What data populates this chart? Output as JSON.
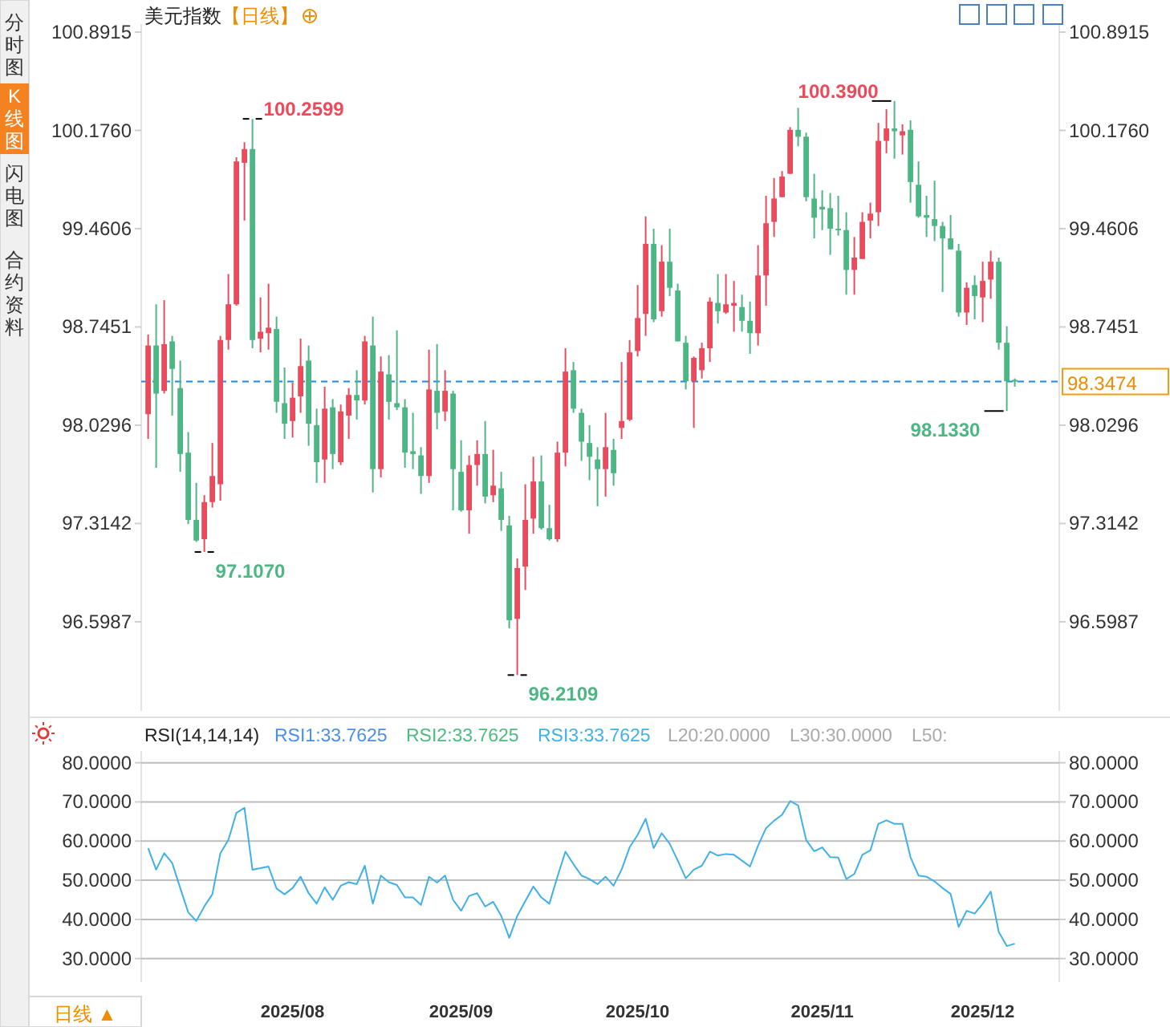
{
  "chart_data": [
    {
      "type": "candlestick",
      "title": "美元指数",
      "subtitle": "【日线】",
      "categories": [
        null,
        null,
        null,
        null,
        null,
        null,
        null,
        null,
        null,
        null,
        null,
        null,
        null,
        null,
        null,
        null,
        null,
        null,
        null,
        null,
        null,
        null,
        null,
        null,
        null,
        null,
        null,
        null,
        null,
        null,
        null,
        null,
        null,
        null,
        null,
        null,
        null,
        null,
        null,
        null,
        null,
        null,
        null,
        null,
        null,
        null,
        null,
        null,
        null,
        null,
        null,
        null,
        null,
        null,
        null,
        null,
        null,
        null,
        null,
        null,
        null,
        null,
        null,
        null,
        null,
        null,
        null,
        null,
        null,
        null,
        null,
        null,
        null,
        null,
        null,
        null,
        null,
        null,
        null,
        null,
        null,
        null,
        null,
        null,
        null,
        null,
        null,
        null,
        null,
        null,
        null,
        null,
        null,
        null,
        null,
        null,
        null,
        null,
        null,
        null,
        null,
        null,
        null,
        null,
        null,
        null,
        null,
        null,
        null
      ],
      "ohlc": [
        [
          98.11,
          98.69,
          97.93,
          98.61
        ],
        [
          98.61,
          98.91,
          97.72,
          98.26
        ],
        [
          98.28,
          98.94,
          98.26,
          98.62
        ],
        [
          98.64,
          98.68,
          98.1,
          98.44
        ],
        [
          98.3,
          98.5,
          97.69,
          97.82
        ],
        [
          97.83,
          97.98,
          97.31,
          97.34
        ],
        [
          97.34,
          97.61,
          97.18,
          97.19
        ],
        [
          97.2,
          97.52,
          97.107,
          97.47
        ],
        [
          97.47,
          97.9,
          97.43,
          97.66
        ],
        [
          97.6,
          98.68,
          97.48,
          98.65
        ],
        [
          98.65,
          99.13,
          98.58,
          98.91
        ],
        [
          98.91,
          99.98,
          98.9,
          99.95
        ],
        [
          99.94,
          100.09,
          99.52,
          100.04
        ],
        [
          100.04,
          100.2599,
          98.59,
          98.65
        ],
        [
          98.66,
          98.96,
          98.56,
          98.71
        ],
        [
          98.7,
          99.06,
          98.58,
          98.74
        ],
        [
          98.73,
          98.82,
          98.12,
          98.2
        ],
        [
          98.19,
          98.45,
          97.93,
          98.04
        ],
        [
          98.06,
          98.34,
          97.94,
          98.23
        ],
        [
          98.24,
          98.66,
          98.12,
          98.46
        ],
        [
          98.5,
          98.61,
          97.88,
          98.04
        ],
        [
          98.03,
          98.15,
          97.61,
          97.76
        ],
        [
          97.78,
          98.31,
          97.61,
          98.15
        ],
        [
          98.16,
          98.22,
          97.71,
          97.82
        ],
        [
          97.76,
          98.18,
          97.74,
          98.13
        ],
        [
          98.1,
          98.3,
          97.93,
          98.25
        ],
        [
          98.25,
          98.43,
          98.07,
          98.21
        ],
        [
          98.21,
          98.68,
          98.18,
          98.64
        ],
        [
          98.61,
          98.82,
          97.54,
          97.71
        ],
        [
          97.71,
          98.53,
          97.65,
          98.42
        ],
        [
          98.4,
          98.54,
          98.07,
          98.2
        ],
        [
          98.19,
          98.72,
          98.14,
          98.16
        ],
        [
          98.16,
          98.22,
          97.72,
          97.83
        ],
        [
          97.84,
          98.12,
          97.71,
          97.82
        ],
        [
          97.81,
          97.87,
          97.53,
          97.66
        ],
        [
          97.66,
          98.58,
          97.61,
          98.29
        ],
        [
          98.28,
          98.62,
          98.0,
          98.12
        ],
        [
          98.13,
          98.43,
          98.06,
          98.28
        ],
        [
          98.26,
          98.28,
          97.41,
          97.71
        ],
        [
          97.69,
          97.92,
          97.4,
          97.41
        ],
        [
          97.41,
          97.81,
          97.24,
          97.74
        ],
        [
          97.74,
          97.92,
          97.59,
          97.82
        ],
        [
          97.82,
          98.06,
          97.46,
          97.51
        ],
        [
          97.52,
          97.85,
          97.47,
          97.59
        ],
        [
          97.57,
          97.69,
          97.26,
          97.34
        ],
        [
          97.3,
          97.37,
          96.55,
          96.61
        ],
        [
          96.62,
          97.06,
          96.2109,
          96.99
        ],
        [
          97.0,
          97.6,
          96.83,
          97.34
        ],
        [
          97.35,
          97.8,
          97.24,
          97.62
        ],
        [
          97.62,
          97.81,
          97.27,
          97.28
        ],
        [
          97.28,
          97.45,
          97.19,
          97.2
        ],
        [
          97.2,
          97.91,
          97.18,
          97.83
        ],
        [
          97.83,
          98.59,
          97.73,
          98.42
        ],
        [
          98.43,
          98.49,
          98.12,
          98.15
        ],
        [
          98.12,
          98.15,
          97.77,
          97.91
        ],
        [
          97.9,
          98.03,
          97.63,
          97.8
        ],
        [
          97.78,
          97.87,
          97.44,
          97.71
        ],
        [
          97.71,
          98.12,
          97.51,
          97.87
        ],
        [
          97.85,
          97.93,
          97.59,
          97.68
        ],
        [
          98.01,
          98.49,
          97.93,
          98.06
        ],
        [
          98.07,
          98.65,
          98.06,
          98.56
        ],
        [
          98.57,
          99.05,
          98.53,
          98.81
        ],
        [
          98.84,
          99.55,
          98.68,
          99.35
        ],
        [
          99.35,
          99.46,
          98.78,
          98.8
        ],
        [
          98.86,
          99.34,
          98.82,
          99.22
        ],
        [
          99.22,
          99.46,
          98.97,
          99.03
        ],
        [
          99.01,
          99.06,
          98.64,
          98.64
        ],
        [
          98.63,
          98.68,
          98.29,
          98.35
        ],
        [
          98.35,
          98.53,
          98.01,
          98.52
        ],
        [
          98.43,
          98.63,
          98.37,
          98.59
        ],
        [
          98.59,
          98.96,
          98.49,
          98.93
        ],
        [
          98.92,
          99.13,
          98.77,
          98.86
        ],
        [
          98.85,
          99.13,
          98.84,
          98.91
        ],
        [
          98.9,
          99.08,
          98.71,
          98.92
        ],
        [
          98.89,
          98.98,
          98.71,
          98.79
        ],
        [
          98.79,
          98.93,
          98.55,
          98.7
        ],
        [
          98.7,
          99.34,
          98.61,
          99.12
        ],
        [
          99.12,
          99.7,
          98.9,
          99.5
        ],
        [
          99.51,
          99.83,
          99.4,
          99.68
        ],
        [
          99.69,
          99.88,
          99.69,
          99.84
        ],
        [
          99.86,
          100.2,
          99.86,
          100.18
        ],
        [
          100.18,
          100.34,
          100.06,
          100.13
        ],
        [
          100.13,
          100.16,
          99.66,
          99.69
        ],
        [
          99.68,
          99.86,
          99.39,
          99.54
        ],
        [
          99.62,
          99.74,
          99.45,
          99.6
        ],
        [
          99.61,
          99.72,
          99.27,
          99.46
        ],
        [
          99.46,
          99.7,
          99.41,
          99.45
        ],
        [
          99.45,
          99.58,
          98.98,
          99.16
        ],
        [
          99.16,
          99.4,
          98.98,
          99.25
        ],
        [
          99.24,
          99.58,
          99.24,
          99.51
        ],
        [
          99.52,
          99.65,
          99.39,
          99.57
        ],
        [
          99.58,
          100.23,
          99.48,
          100.1
        ],
        [
          100.1,
          100.33,
          100.01,
          100.19
        ],
        [
          100.19,
          100.39,
          99.97,
          100.17
        ],
        [
          100.14,
          100.22,
          100.0,
          100.17
        ],
        [
          100.18,
          100.25,
          99.65,
          99.8
        ],
        [
          99.78,
          99.95,
          99.54,
          99.55
        ],
        [
          99.56,
          99.7,
          99.4,
          99.54
        ],
        [
          99.53,
          99.81,
          99.37,
          99.48
        ],
        [
          99.48,
          99.51,
          99.0,
          99.39
        ],
        [
          99.39,
          99.56,
          99.31,
          99.31
        ],
        [
          99.3,
          99.35,
          98.82,
          98.85
        ],
        [
          98.85,
          99.07,
          98.76,
          99.03
        ],
        [
          99.05,
          99.12,
          98.8,
          98.97
        ],
        [
          98.96,
          99.22,
          98.78,
          99.08
        ],
        [
          99.09,
          99.3,
          98.95,
          99.22
        ],
        [
          99.22,
          99.25,
          98.58,
          98.63
        ],
        [
          98.63,
          98.75,
          98.133,
          98.35
        ],
        [
          98.36,
          98.37,
          98.31,
          98.3474
        ]
      ],
      "colors": [
        "#ec4a5b",
        "#4db784",
        "#ec4a5b",
        "#4db784",
        "#4db784",
        "#4db784",
        "#4db784",
        "#ec4a5b",
        "#ec4a5b",
        "#ec4a5b",
        "#ec4a5b",
        "#ec4a5b",
        "#ec4a5b",
        "#4db784",
        "#ec4a5b",
        "#ec4a5b",
        "#4db784",
        "#4db784",
        "#ec4a5b",
        "#ec4a5b",
        "#4db784",
        "#4db784",
        "#ec4a5b",
        "#4db784",
        "#ec4a5b",
        "#ec4a5b",
        "#4db784",
        "#ec4a5b",
        "#4db784",
        "#ec4a5b",
        "#4db784",
        "#4db784",
        "#4db784",
        "#4db784",
        "#4db784",
        "#ec4a5b",
        "#4db784",
        "#ec4a5b",
        "#4db784",
        "#4db784",
        "#ec4a5b",
        "#ec4a5b",
        "#4db784",
        "#ec4a5b",
        "#4db784",
        "#4db784",
        "#ec4a5b",
        "#ec4a5b",
        "#ec4a5b",
        "#4db784",
        "#4db784",
        "#ec4a5b",
        "#ec4a5b",
        "#4db784",
        "#4db784",
        "#4db784",
        "#4db784",
        "#ec4a5b",
        "#4db784",
        "#ec4a5b",
        "#ec4a5b",
        "#ec4a5b",
        "#ec4a5b",
        "#4db784",
        "#ec4a5b",
        "#4db784",
        "#4db784",
        "#4db784",
        "#ec4a5b",
        "#ec4a5b",
        "#ec4a5b",
        "#4db784",
        "#ec4a5b",
        "#ec4a5b",
        "#4db784",
        "#4db784",
        "#ec4a5b",
        "#ec4a5b",
        "#ec4a5b",
        "#ec4a5b",
        "#ec4a5b",
        "#4db784",
        "#4db784",
        "#4db784",
        "#4db784",
        "#4db784",
        "#4db784",
        "#4db784",
        "#ec4a5b",
        "#ec4a5b",
        "#ec4a5b",
        "#ec4a5b",
        "#ec4a5b",
        "#4db784",
        "#ec4a5b",
        "#4db784",
        "#4db784",
        "#4db784",
        "#4db784",
        "#4db784",
        "#4db784",
        "#4db784",
        "#ec4a5b",
        "#4db784",
        "#ec4a5b",
        "#ec4a5b",
        "#4db784",
        "#4db784",
        "#4db784"
      ],
      "ylim": [
        95.95,
        100.95
      ],
      "yticks": [
        {
          "value": 96.5987,
          "label": "96.5987"
        },
        {
          "value": 97.3142,
          "label": "97.3142"
        },
        {
          "value": 98.0296,
          "label": "98.0296"
        },
        {
          "value": 98.7451,
          "label": "98.7451"
        },
        {
          "value": 99.4606,
          "label": "99.4606"
        },
        {
          "value": 100.176,
          "label": "100.1760"
        },
        {
          "value": 100.8915,
          "label": "100.8915"
        }
      ],
      "y2lim": [
        95.95,
        100.95
      ],
      "y2ticks": [
        {
          "value": 96.5987,
          "label": "96.5987"
        },
        {
          "value": 97.3142,
          "label": "97.3142"
        },
        {
          "value": 98.0296,
          "label": "98.0296"
        },
        {
          "value": 98.7451,
          "label": "98.7451"
        },
        {
          "value": 99.4606,
          "label": "99.4606"
        },
        {
          "value": 100.176,
          "label": "100.1760"
        },
        {
          "value": 100.8915,
          "label": "100.8915"
        }
      ],
      "tick_labels": "y",
      "ref_lines": [
        {
          "axis": "y",
          "value": 98.3474,
          "label": "98.3474",
          "color": "#1e88e5",
          "line_style": "dashed"
        }
      ],
      "annotations": [
        "100.2599",
        "97.1070",
        "96.2109",
        "100.3900",
        "98.1330",
        "分时图",
        "K线图",
        "闪电图",
        "合约资料"
      ]
    },
    {
      "type": "line",
      "title": "RSI(14,14,14)",
      "categories": [
        null,
        null,
        null,
        null,
        null,
        null,
        null,
        null,
        null,
        null,
        null,
        null,
        null,
        null,
        null,
        null,
        null,
        null,
        "2025/08",
        null,
        null,
        null,
        null,
        null,
        null,
        null,
        null,
        null,
        null,
        null,
        null,
        null,
        null,
        null,
        null,
        null,
        null,
        null,
        null,
        "2025/09",
        null,
        null,
        null,
        null,
        null,
        null,
        null,
        null,
        null,
        null,
        null,
        null,
        null,
        null,
        null,
        null,
        null,
        null,
        null,
        null,
        null,
        "2025/10",
        null,
        null,
        null,
        null,
        null,
        null,
        null,
        null,
        null,
        null,
        null,
        null,
        null,
        null,
        null,
        null,
        null,
        null,
        null,
        null,
        null,
        null,
        "2025/11",
        null,
        null,
        null,
        null,
        null,
        null,
        null,
        null,
        null,
        null,
        null,
        null,
        null,
        null,
        null,
        null,
        null,
        null,
        null,
        "2025/12",
        null,
        null,
        null,
        null
      ],
      "series": [
        {
          "color": "#3fb0e8",
          "values": [
            58.2,
            52.7,
            56.9,
            54.4,
            48,
            41.8,
            39.6,
            43.3,
            46.4,
            56.9,
            60.3,
            67.2,
            68.5,
            52.7,
            53.1,
            53.5,
            47.9,
            46.4,
            48,
            50.9,
            46.7,
            44,
            48.2,
            45,
            48.6,
            49.5,
            49,
            53.7,
            44,
            51.2,
            49.5,
            48.8,
            45.6,
            45.6,
            43.7,
            50.9,
            49.4,
            51.2,
            45,
            42.2,
            46,
            46.7,
            43.3,
            44.5,
            40.9,
            35.3,
            40.9,
            44.7,
            48.4,
            45.6,
            44,
            50.9,
            57.3,
            54.1,
            51.2,
            50.3,
            49,
            50.9,
            48.6,
            52.7,
            58.4,
            61.6,
            65.7,
            58.2,
            62,
            59.3,
            55,
            50.5,
            52.7,
            53.7,
            57.3,
            56.3,
            56.7,
            56.5,
            55,
            53.5,
            58.8,
            63.3,
            65.2,
            66.7,
            70.2,
            69.1,
            60.3,
            57.4,
            58.4,
            55.9,
            55.8,
            50.3,
            51.6,
            56.5,
            57.6,
            64.4,
            65.3,
            64.4,
            64.4,
            55.9,
            51.2,
            50.9,
            49.7,
            48,
            46.5,
            38.1,
            42.2,
            41.5,
            44,
            47.1,
            36.8,
            33.2,
            33.8
          ]
        }
      ],
      "ylim": [
        24,
        83
      ],
      "yticks": [
        {
          "value": 30,
          "label": "30.0000"
        },
        {
          "value": 40,
          "label": "40.0000"
        },
        {
          "value": 50,
          "label": "50.0000"
        },
        {
          "value": 60,
          "label": "60.0000"
        },
        {
          "value": 70,
          "label": "70.0000"
        },
        {
          "value": 80,
          "label": "80.0000"
        }
      ],
      "y2lim": [
        24,
        83
      ],
      "y2ticks": [
        {
          "value": 30,
          "label": "30.0000"
        },
        {
          "value": 40,
          "label": "40.0000"
        },
        {
          "value": 50,
          "label": "50.0000"
        },
        {
          "value": 60,
          "label": "60.0000"
        },
        {
          "value": 70,
          "label": "70.0000"
        },
        {
          "value": 80,
          "label": "80.0000"
        }
      ],
      "grid": "y",
      "annotations": [
        "RSI1:33.7625",
        "RSI2:33.7625",
        "RSI3:33.7625",
        "L20:20.0000",
        "L30:30.0000",
        "L50:",
        "日线 ▲"
      ]
    }
  ]
}
